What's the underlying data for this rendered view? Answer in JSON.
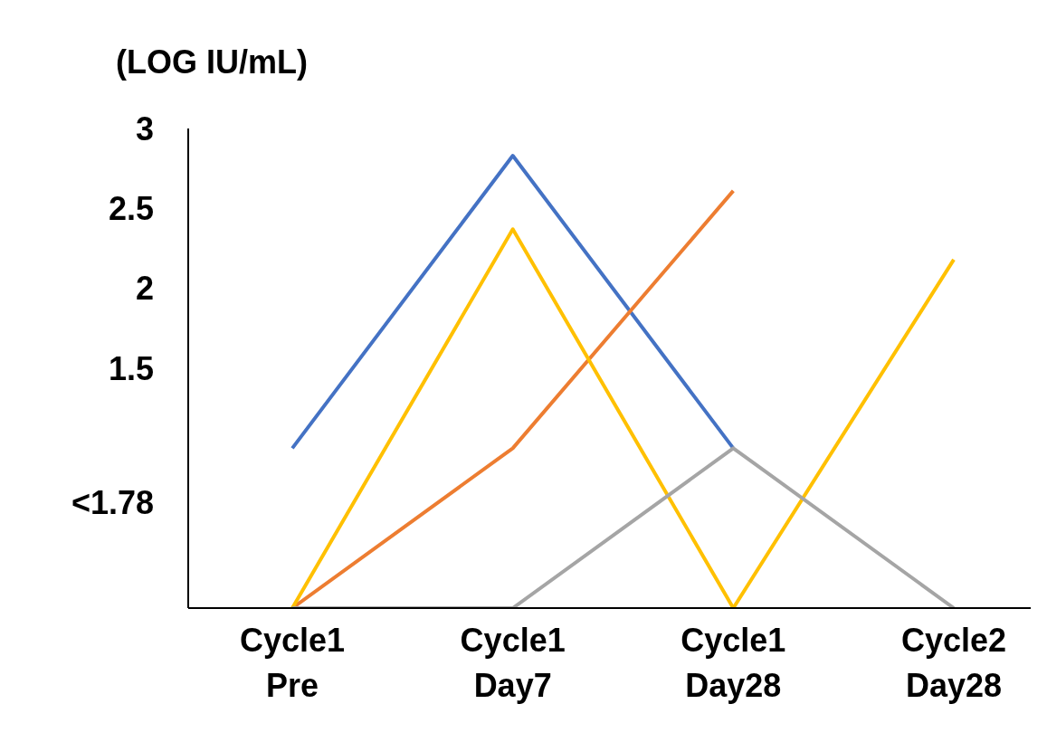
{
  "chart_data": {
    "type": "line",
    "ylabel": "(LOG IU/mL)",
    "categories": [
      "Cycle1\nPre",
      "Cycle1\nDay7",
      "Cycle1\nDay28",
      "Cycle2\nDay28"
    ],
    "series": [
      {
        "color": "#4472c4",
        "values": [
          1.0,
          2.83,
          1.0,
          null
        ]
      },
      {
        "color": "#ed7d31",
        "values": [
          0,
          1.0,
          2.61,
          null
        ]
      },
      {
        "color": "#ffc000",
        "values": [
          0,
          2.37,
          0,
          2.18
        ]
      },
      {
        "color": "#a5a5a5",
        "values": [
          0,
          0,
          1.0,
          0
        ]
      }
    ],
    "ylim": [
      0,
      3
    ],
    "yticks": [
      {
        "value": 0.66,
        "label": "<1.78"
      },
      1.5,
      2,
      2.5,
      3
    ]
  }
}
